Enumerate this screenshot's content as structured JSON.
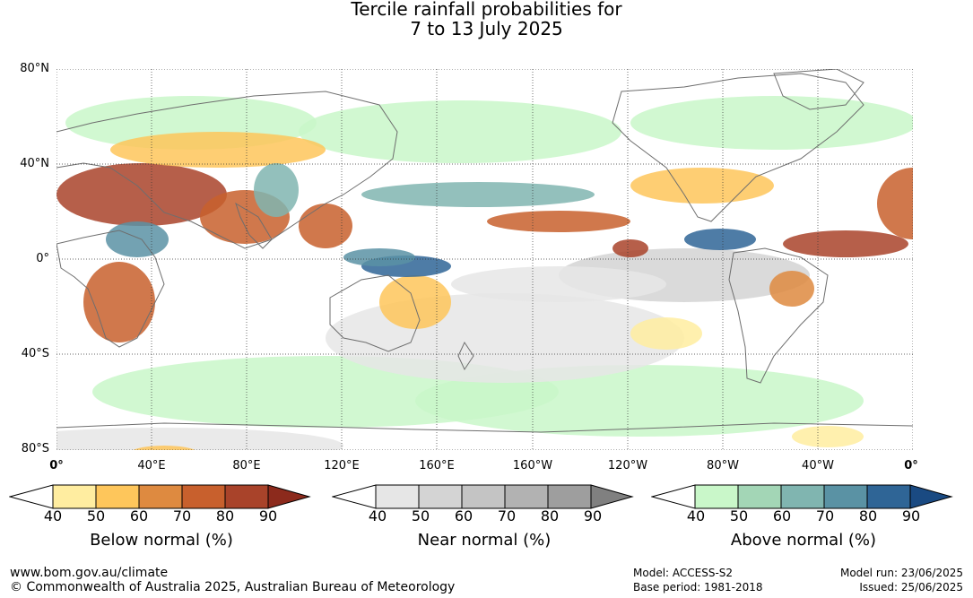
{
  "title_line1": "Tercile rainfall probabilities for",
  "title_line2": "7 to 13 July 2025",
  "lat_labels": [
    "80°N",
    "40°N",
    "0°",
    "40°S",
    "80°S"
  ],
  "lon_labels": [
    "0°",
    "40°E",
    "80°E",
    "120°E",
    "160°E",
    "160°W",
    "120°W",
    "80°W",
    "40°W",
    "0°"
  ],
  "legends": [
    {
      "title": "Below normal (%)",
      "ticks": [
        "40",
        "50",
        "60",
        "70",
        "80",
        "90"
      ],
      "colors": [
        "#ffeda0",
        "#fec65b",
        "#de8a40",
        "#c8602d",
        "#a9432a",
        "#8c2a1c"
      ]
    },
    {
      "title": "Near normal (%)",
      "ticks": [
        "40",
        "50",
        "60",
        "70",
        "80",
        "90"
      ],
      "colors": [
        "#e6e6e6",
        "#d4d4d4",
        "#c4c4c4",
        "#b2b2b2",
        "#9e9e9e",
        "#808080"
      ]
    },
    {
      "title": "Above normal (%)",
      "ticks": [
        "40",
        "50",
        "60",
        "70",
        "80",
        "90"
      ],
      "colors": [
        "#c9f7c9",
        "#a3d6b6",
        "#80b5b0",
        "#5a92a4",
        "#2f6596",
        "#1a4a82"
      ]
    }
  ],
  "footer": {
    "website": "www.bom.gov.au/climate",
    "copyright": "© Commonwealth of Australia 2025, Australian Bureau of Meteorology",
    "model": "Model: ACCESS-S2",
    "base_period": "Base period: 1981-2018",
    "model_run": "Model run: 23/06/2025",
    "issued": "Issued: 25/06/2025"
  }
}
